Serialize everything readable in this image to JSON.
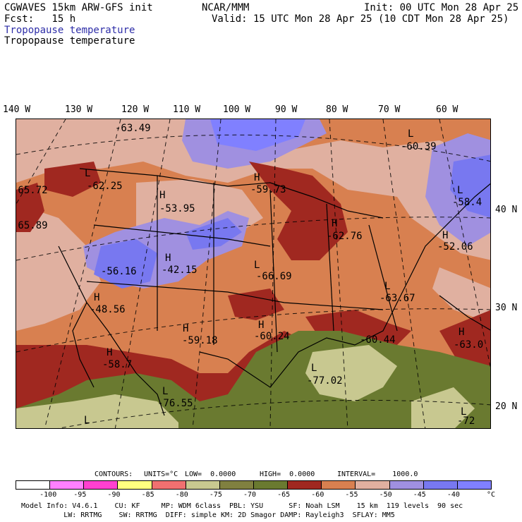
{
  "header": {
    "model": "CGWAVES 15km ARW-GFS init",
    "org": "NCAR/MMM",
    "init": "Init: 00 UTC Mon 28 Apr 25",
    "fcst": "Fcst:   15 h",
    "valid": "Valid: 15 UTC Mon 28 Apr 25 (10 CDT Mon 28 Apr 25)",
    "field_colored": "Tropopause temperature",
    "field_contour": "Tropopause temperature"
  },
  "lon_labels": [
    "140 W",
    "130 W",
    "120 W",
    "110 W",
    "100 W",
    "90 W",
    "80 W",
    "70 W",
    "60 W"
  ],
  "lat_labels": [
    "40 N",
    "30 N",
    "20 N"
  ],
  "map_labels": [
    {
      "t": "-63.49"
    },
    {
      "t": "L"
    },
    {
      "t": "-60.39"
    },
    {
      "t": "L"
    },
    {
      "t": "-62.25"
    },
    {
      "t": "-65.72"
    },
    {
      "t": "H"
    },
    {
      "t": "-53.95"
    },
    {
      "t": "H"
    },
    {
      "t": "-59.73"
    },
    {
      "t": "L"
    },
    {
      "t": "-58.4"
    },
    {
      "t": "-65.89"
    },
    {
      "t": "H"
    },
    {
      "t": "-62.76"
    },
    {
      "t": "H"
    },
    {
      "t": "-52.06"
    },
    {
      "t": "H"
    },
    {
      "t": "-42.15"
    },
    {
      "t": "-56.16"
    },
    {
      "t": "L"
    },
    {
      "t": "-66.69"
    },
    {
      "t": "H"
    },
    {
      "t": "-48.56"
    },
    {
      "t": "L"
    },
    {
      "t": "-63.67"
    },
    {
      "t": "H"
    },
    {
      "t": "-59.18"
    },
    {
      "t": "H"
    },
    {
      "t": "-60.24"
    },
    {
      "t": "-60.44"
    },
    {
      "t": "H"
    },
    {
      "t": "-63.0"
    },
    {
      "t": "H"
    },
    {
      "t": "-58.7"
    },
    {
      "t": "L"
    },
    {
      "t": "-77.02"
    },
    {
      "t": "L"
    },
    {
      "t": "-76.55"
    },
    {
      "t": "L"
    },
    {
      "t": "L"
    },
    {
      "t": "-72"
    }
  ],
  "contours_line": {
    "contours": "CONTOURS:",
    "units": "UNITS=°C",
    "low": "LOW=  0.0000",
    "high": "HIGH=  0.0000",
    "interval": "INTERVAL=    1000.0"
  },
  "colorbar": {
    "colors": [
      "#ffffff",
      "#ff80ff",
      "#ff40d0",
      "#ffff80",
      "#f07070",
      "#c8c890",
      "#808040",
      "#6a7a30",
      "#a02820",
      "#d88050",
      "#e0b0a0",
      "#a090e0",
      "#7878f0",
      "#8080ff"
    ],
    "ticks": [
      "-100",
      "-95",
      "-90",
      "-85",
      "-80",
      "-75",
      "-70",
      "-65",
      "-60",
      "-55",
      "-50",
      "-45",
      "-40"
    ],
    "unit": "°C"
  },
  "footer": {
    "line1": "Model Info: V4.6.1    CU: KF     MP: WDM 6class  PBL: YSU      SF: Noah LSM    15 km  119 levels  90 sec",
    "line2": "          LW: RRTMG    SW: RRTMG  DIFF: simple KM: 2D Smagor DAMP: Rayleigh3  SFLAY: MM5"
  }
}
